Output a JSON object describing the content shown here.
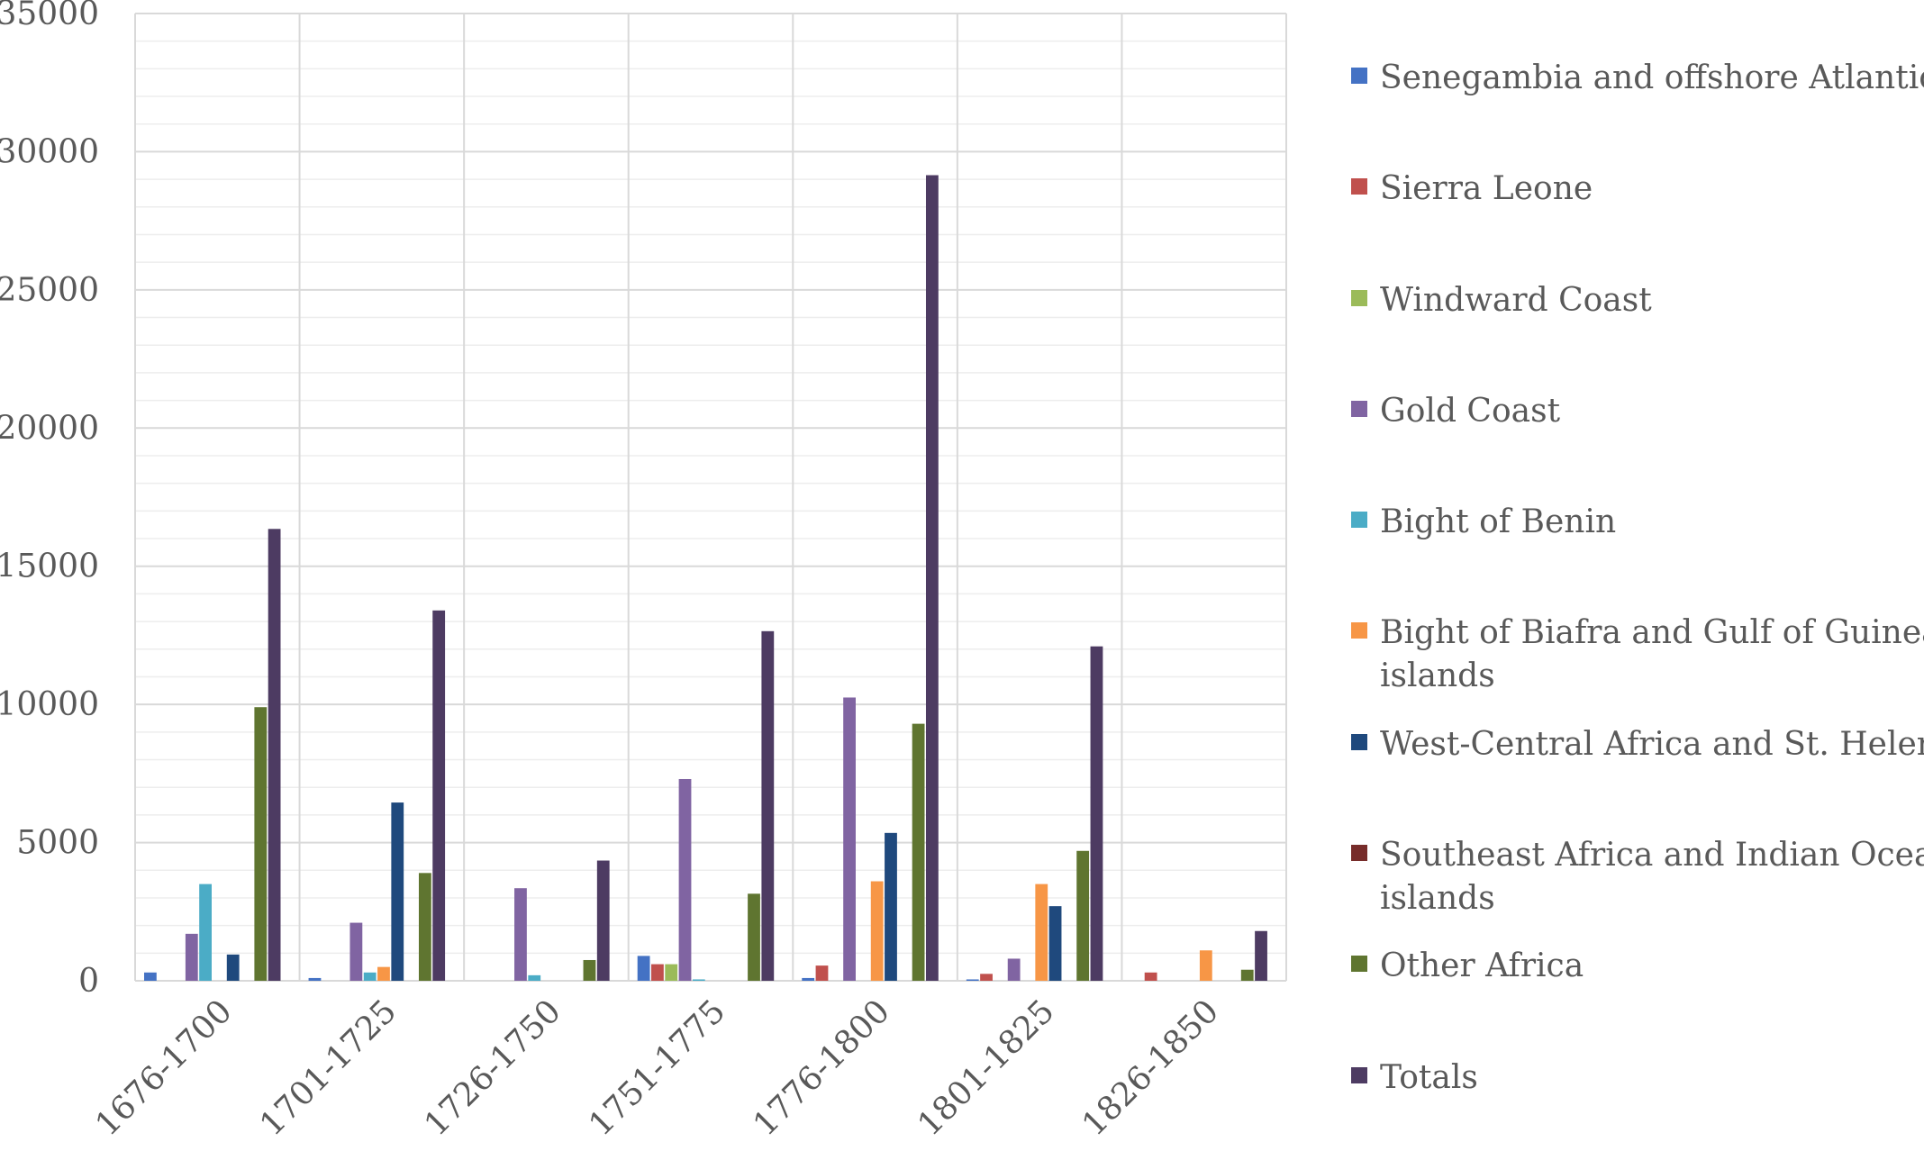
{
  "chart_data": {
    "type": "bar",
    "title": "",
    "xlabel": "",
    "ylabel": "",
    "ylim": [
      0,
      35000
    ],
    "yticks": [
      0,
      5000,
      10000,
      15000,
      20000,
      25000,
      30000,
      35000
    ],
    "grid": true,
    "legend_position": "right",
    "categories": [
      "1676-1700",
      "1701-1725",
      "1726-1750",
      "1751-1775",
      "1776-1800",
      "1801-1825",
      "1826-1850"
    ],
    "series": [
      {
        "name": "Senegambia and offshore Atlantic",
        "color": "#4472C4",
        "values": [
          300,
          100,
          0,
          900,
          100,
          50,
          0
        ]
      },
      {
        "name": "Sierra Leone",
        "color": "#C0504D",
        "values": [
          0,
          0,
          0,
          600,
          550,
          250,
          300
        ]
      },
      {
        "name": "Windward Coast",
        "color": "#9BBB59",
        "values": [
          0,
          0,
          0,
          600,
          0,
          0,
          0
        ]
      },
      {
        "name": "Gold Coast",
        "color": "#8064A2",
        "values": [
          1700,
          2100,
          3350,
          7300,
          10250,
          800,
          0
        ]
      },
      {
        "name": "Bight of Benin",
        "color": "#4BACC6",
        "values": [
          3500,
          300,
          200,
          50,
          0,
          0,
          0
        ]
      },
      {
        "name": "Bight of Biafra and Gulf of Guinea islands",
        "color": "#F79646",
        "values": [
          0,
          500,
          0,
          0,
          3600,
          3500,
          1100
        ]
      },
      {
        "name": "West-Central Africa and St. Helena",
        "color": "#1F497D",
        "values": [
          950,
          6450,
          0,
          0,
          5350,
          2700,
          0
        ]
      },
      {
        "name": "Southeast Africa and Indian Ocean islands",
        "color": "#772C2A",
        "values": [
          0,
          0,
          0,
          0,
          0,
          0,
          0
        ]
      },
      {
        "name": "Other Africa",
        "color": "#5F7530",
        "values": [
          9900,
          3900,
          750,
          3150,
          9300,
          4700,
          400
        ]
      },
      {
        "name": "Totals",
        "color": "#4D3B62",
        "values": [
          16350,
          13400,
          4350,
          12650,
          29150,
          12100,
          1800
        ]
      }
    ]
  }
}
